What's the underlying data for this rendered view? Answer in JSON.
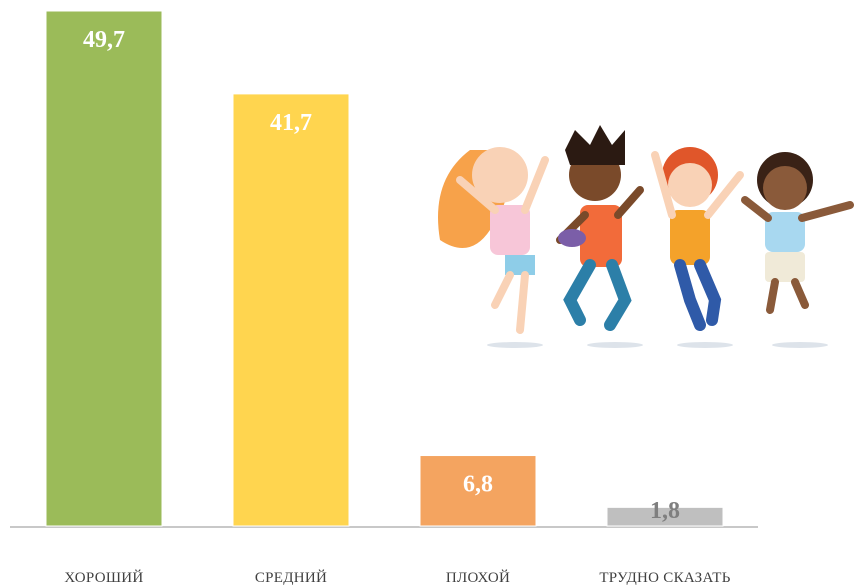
{
  "chart_data": {
    "type": "bar",
    "categories": [
      "ХОРОШИЙ",
      "СРЕДНИЙ",
      "ПЛОХОЙ",
      "ТРУДНО СКАЗАТЬ"
    ],
    "values": [
      49.7,
      41.7,
      6.8,
      1.8
    ],
    "value_labels": [
      "49,7",
      "41,7",
      "6,8",
      "1,8"
    ],
    "colors": [
      "#9bbb59",
      "#ffd54f",
      "#f4a460",
      "#bfbfbf"
    ],
    "value_label_colors": [
      "#ffffff",
      "#ffffff",
      "#ffffff",
      "#7f7f7f"
    ]
  }
}
